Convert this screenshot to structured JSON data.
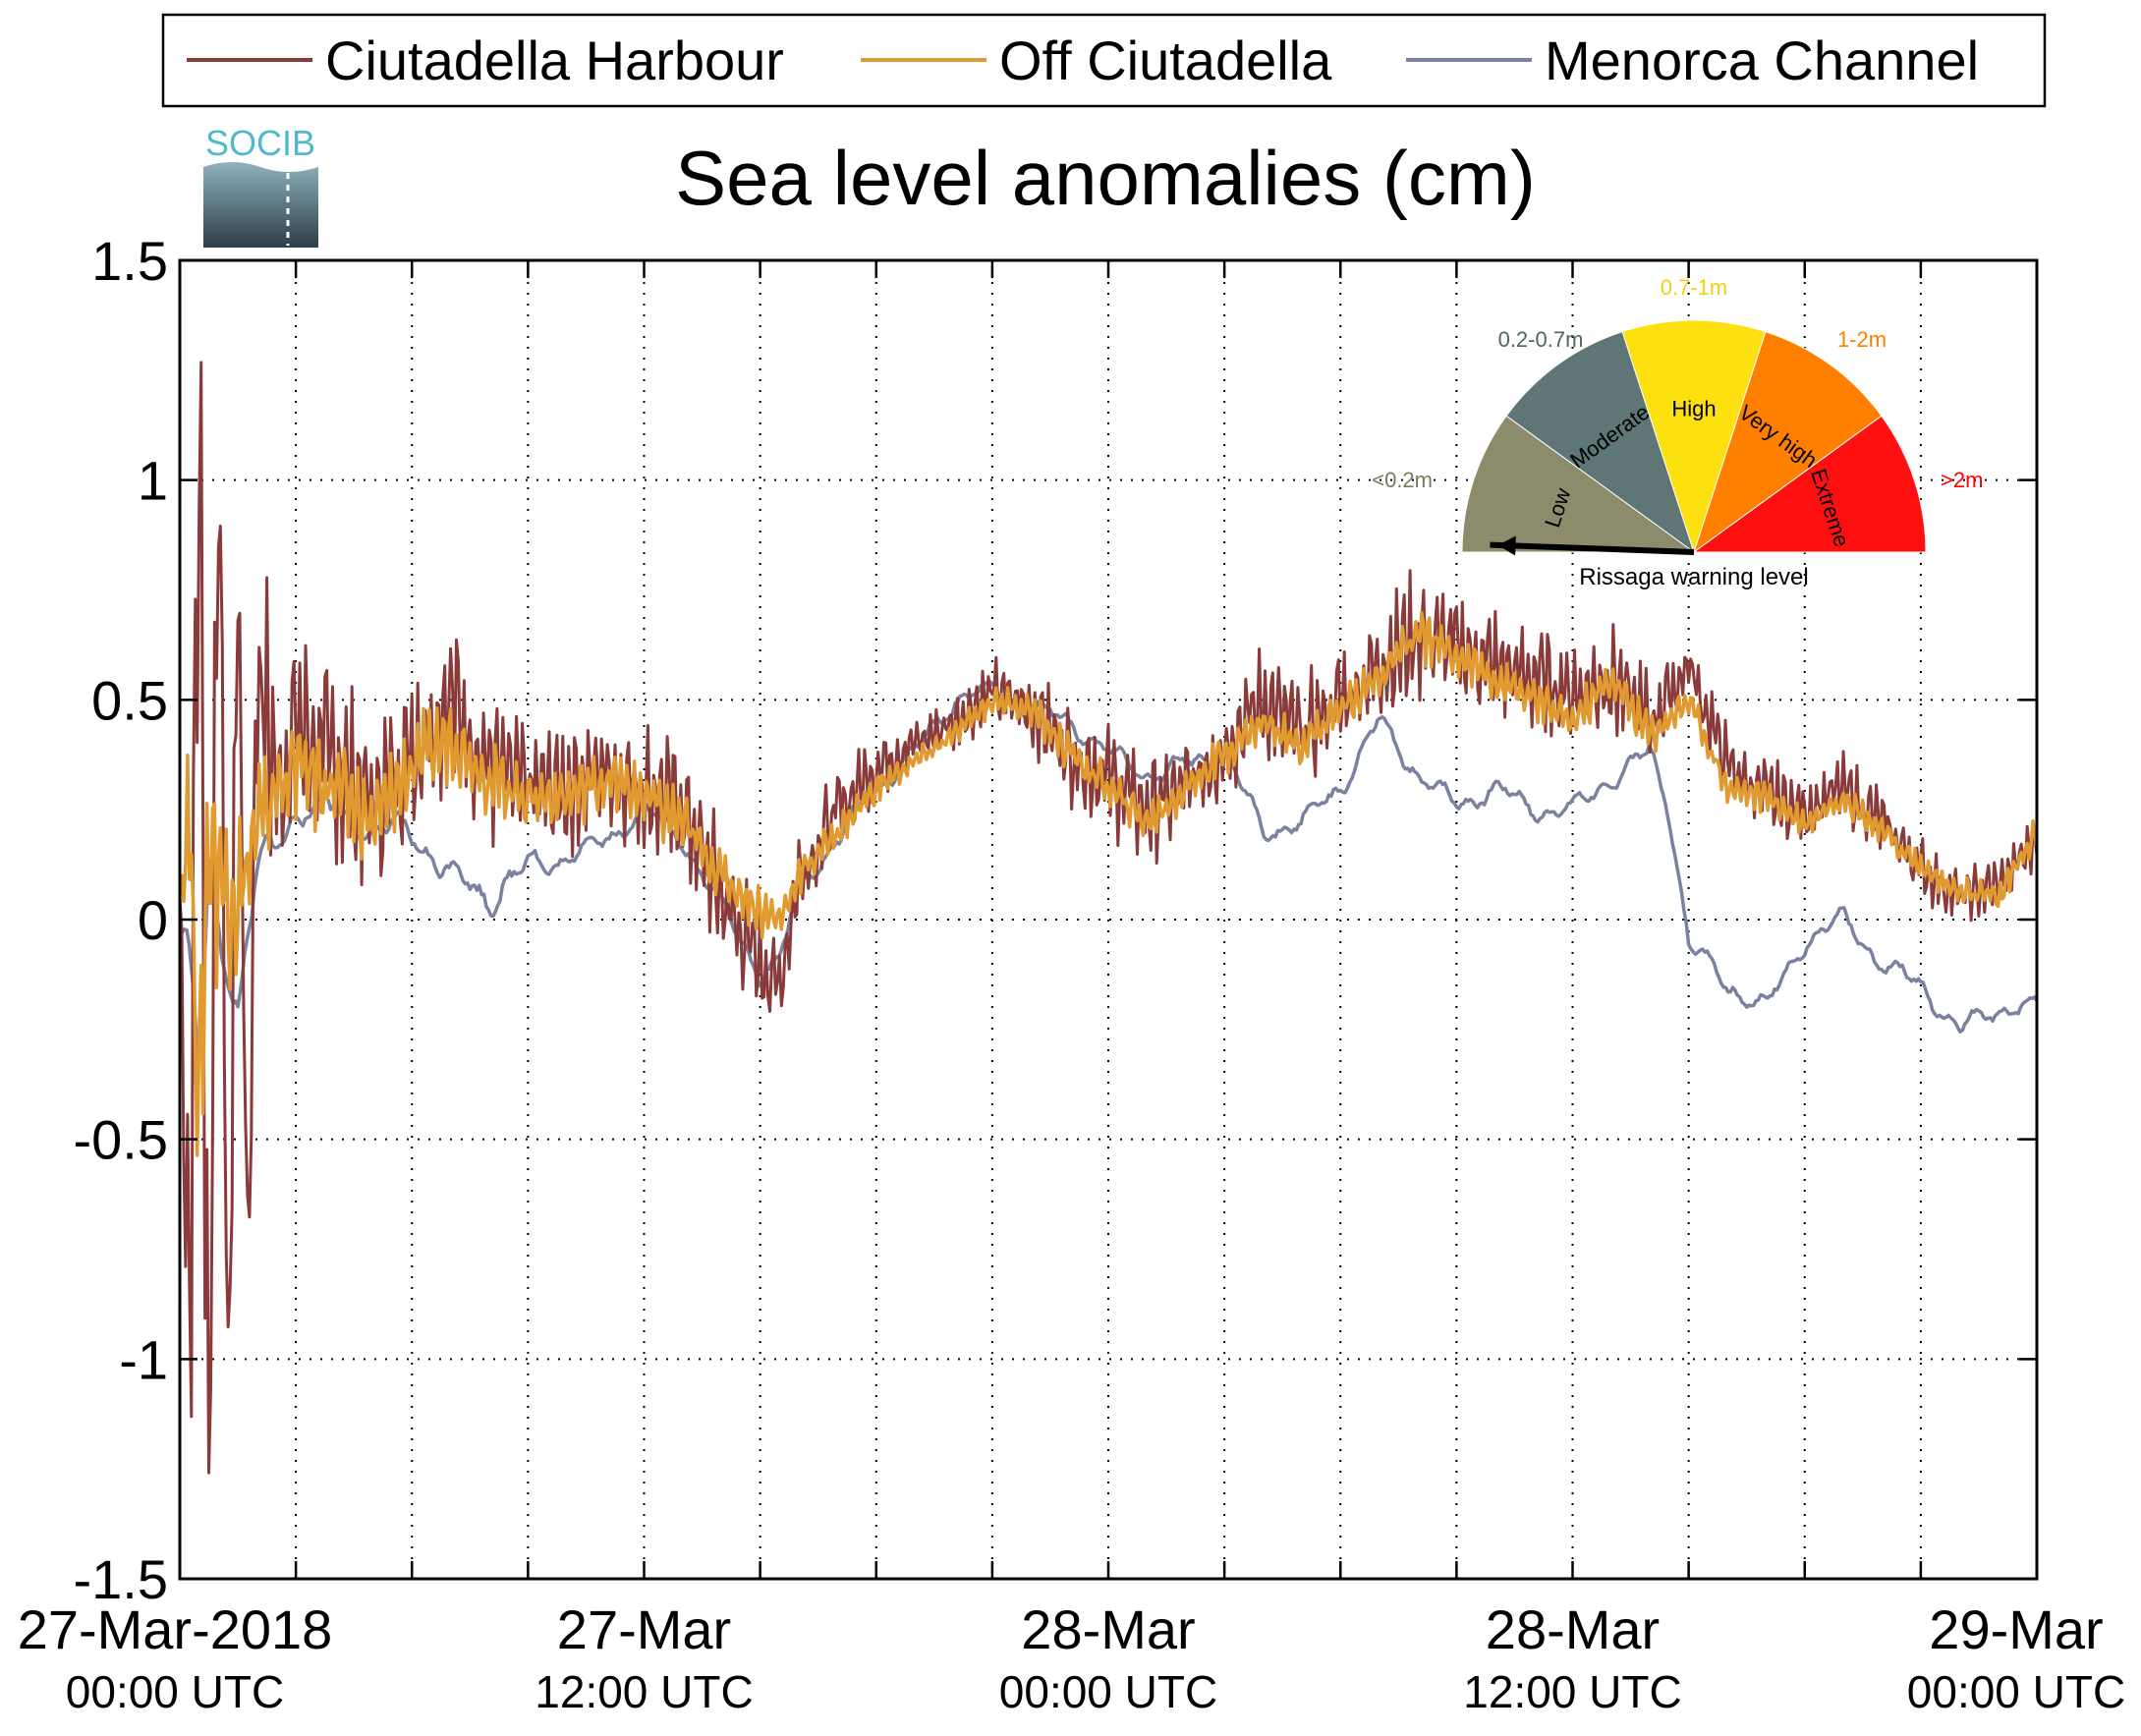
{
  "chart_data": {
    "type": "line",
    "title": "Sea level anomalies (cm)",
    "xlabel": "",
    "ylabel": "",
    "ylim": [
      -1.5,
      1.5
    ],
    "yticks": [
      -1.5,
      -1,
      -0.5,
      0,
      0.5,
      1,
      1.5
    ],
    "ytick_labels": [
      "-1.5",
      "-1",
      "-0.5",
      "0",
      "0.5",
      "1",
      "1.5"
    ],
    "xlim_hours": [
      0,
      48
    ],
    "xticks": [
      {
        "hour": 0,
        "date": "27-Mar-2018",
        "time": "00:00 UTC"
      },
      {
        "hour": 12,
        "date": "27-Mar",
        "time": "12:00 UTC"
      },
      {
        "hour": 24,
        "date": "28-Mar",
        "time": "00:00 UTC"
      },
      {
        "hour": 36,
        "date": "28-Mar",
        "time": "12:00 UTC"
      },
      {
        "hour": 48,
        "date": "29-Mar",
        "time": "00:00 UTC"
      }
    ],
    "grid": true,
    "legend_position": "top",
    "series": [
      {
        "name": "Ciutadella Harbour",
        "color": "#8b3a3a",
        "x_hours": [
          0,
          0.25,
          0.5,
          0.75,
          1,
          1.25,
          1.5,
          1.75,
          2,
          2.5,
          3,
          4,
          5,
          6,
          7,
          8,
          9,
          10,
          11,
          12,
          13,
          14,
          15,
          15.5,
          16,
          17,
          18,
          19,
          20,
          21,
          22,
          23,
          24,
          25,
          26,
          27,
          28,
          29,
          30,
          31,
          32,
          33,
          34,
          35,
          36,
          37,
          38,
          39,
          40,
          41,
          42,
          43,
          44,
          45,
          46,
          47,
          48
        ],
        "values": [
          0.05,
          -0.9,
          1.2,
          -1.3,
          1.3,
          -1.2,
          0.9,
          -0.8,
          0.6,
          0.3,
          0.45,
          0.35,
          0.25,
          0.4,
          0.5,
          0.35,
          0.3,
          0.3,
          0.35,
          0.3,
          0.25,
          0.05,
          -0.1,
          -0.15,
          0.1,
          0.25,
          0.35,
          0.4,
          0.45,
          0.52,
          0.48,
          0.38,
          0.32,
          0.25,
          0.3,
          0.4,
          0.5,
          0.42,
          0.5,
          0.58,
          0.65,
          0.62,
          0.58,
          0.55,
          0.52,
          0.55,
          0.45,
          0.58,
          0.35,
          0.28,
          0.25,
          0.3,
          0.22,
          0.12,
          0.05,
          0.08,
          0.18
        ],
        "noise": [
          0.05,
          0.5,
          0.5,
          0.5,
          0.5,
          0.5,
          0.45,
          0.4,
          0.3,
          0.22,
          0.2,
          0.18,
          0.16,
          0.16,
          0.16,
          0.15,
          0.12,
          0.12,
          0.12,
          0.12,
          0.12,
          0.12,
          0.1,
          0.08,
          0.09,
          0.08,
          0.06,
          0.05,
          0.05,
          0.06,
          0.07,
          0.09,
          0.1,
          0.1,
          0.1,
          0.1,
          0.1,
          0.1,
          0.1,
          0.1,
          0.12,
          0.1,
          0.1,
          0.1,
          0.1,
          0.1,
          0.09,
          0.08,
          0.07,
          0.07,
          0.06,
          0.06,
          0.06,
          0.06,
          0.05,
          0.05,
          0.05
        ]
      },
      {
        "name": "Off Ciutadella",
        "color": "#e09a30",
        "x_hours": [
          0,
          0.25,
          0.5,
          0.75,
          1,
          1.5,
          2,
          2.5,
          3,
          4,
          5,
          6,
          7,
          8,
          9,
          10,
          11,
          12,
          13,
          14,
          15,
          15.5,
          16,
          17,
          18,
          19,
          20,
          21,
          22,
          23,
          24,
          25,
          26,
          27,
          28,
          29,
          30,
          31,
          32,
          33,
          34,
          35,
          36,
          37,
          38,
          39,
          40,
          41,
          42,
          43,
          44,
          45,
          46,
          47,
          48
        ],
        "values": [
          0.05,
          0.25,
          -0.45,
          0.2,
          0.1,
          0.05,
          0.2,
          0.3,
          0.35,
          0.3,
          0.22,
          0.35,
          0.42,
          0.32,
          0.28,
          0.28,
          0.32,
          0.28,
          0.22,
          0.1,
          0.02,
          0.0,
          0.1,
          0.2,
          0.3,
          0.36,
          0.42,
          0.5,
          0.48,
          0.38,
          0.3,
          0.22,
          0.3,
          0.38,
          0.45,
          0.4,
          0.48,
          0.55,
          0.65,
          0.6,
          0.55,
          0.5,
          0.45,
          0.55,
          0.42,
          0.5,
          0.3,
          0.28,
          0.22,
          0.28,
          0.2,
          0.12,
          0.06,
          0.05,
          0.2
        ],
        "noise": [
          0.04,
          0.2,
          0.2,
          0.22,
          0.2,
          0.16,
          0.13,
          0.11,
          0.1,
          0.09,
          0.08,
          0.08,
          0.08,
          0.07,
          0.06,
          0.06,
          0.06,
          0.06,
          0.06,
          0.05,
          0.05,
          0.04,
          0.04,
          0.03,
          0.03,
          0.02,
          0.02,
          0.03,
          0.03,
          0.04,
          0.04,
          0.04,
          0.04,
          0.04,
          0.04,
          0.04,
          0.04,
          0.04,
          0.05,
          0.04,
          0.04,
          0.04,
          0.04,
          0.04,
          0.04,
          0.03,
          0.03,
          0.03,
          0.03,
          0.03,
          0.03,
          0.03,
          0.03,
          0.03,
          0.03
        ]
      },
      {
        "name": "Menorca Channel",
        "color": "#7a82a0",
        "x_hours": [
          0,
          0.25,
          0.5,
          0.75,
          1,
          1.5,
          2,
          3,
          4,
          5,
          6,
          7,
          8,
          9,
          10,
          11,
          12,
          13,
          14,
          15,
          15.5,
          16,
          17,
          18,
          19,
          20,
          21,
          22,
          23,
          24,
          25,
          26,
          27,
          28,
          29,
          30,
          31,
          32,
          33,
          34,
          35,
          36,
          37,
          38,
          38.5,
          39,
          40,
          41,
          42,
          43,
          44,
          45,
          46,
          47,
          48
        ],
        "values": [
          -0.02,
          -0.1,
          -0.35,
          0.1,
          0.0,
          -0.2,
          0.1,
          0.25,
          0.25,
          0.2,
          0.2,
          0.1,
          0.05,
          0.12,
          0.14,
          0.18,
          0.25,
          0.18,
          0.03,
          -0.12,
          -0.1,
          0.08,
          0.18,
          0.3,
          0.38,
          0.5,
          0.52,
          0.48,
          0.45,
          0.38,
          0.33,
          0.35,
          0.38,
          0.2,
          0.22,
          0.3,
          0.45,
          0.33,
          0.26,
          0.3,
          0.25,
          0.25,
          0.32,
          0.38,
          0.25,
          -0.05,
          -0.15,
          -0.2,
          -0.05,
          0.0,
          -0.1,
          -0.15,
          -0.25,
          -0.2,
          -0.2
        ],
        "noise": [
          0.02,
          0.05,
          0.05,
          0.05,
          0.05,
          0.04,
          0.04,
          0.03,
          0.03,
          0.03,
          0.03,
          0.03,
          0.03,
          0.03,
          0.02,
          0.02,
          0.02,
          0.02,
          0.02,
          0.02,
          0.02,
          0.02,
          0.02,
          0.02,
          0.02,
          0.02,
          0.02,
          0.02,
          0.02,
          0.02,
          0.02,
          0.02,
          0.02,
          0.02,
          0.02,
          0.02,
          0.02,
          0.02,
          0.02,
          0.02,
          0.02,
          0.02,
          0.02,
          0.02,
          0.02,
          0.02,
          0.02,
          0.02,
          0.02,
          0.02,
          0.02,
          0.02,
          0.02,
          0.02,
          0.02
        ]
      }
    ]
  },
  "logo": {
    "text": "SOCIB"
  },
  "gauge": {
    "caption": "Rissaga warning level",
    "pointer_value": 0.1,
    "segments": [
      {
        "label": "Low",
        "range": "<0.2m",
        "color": "#8c8c6c",
        "range_color": "#7c7c5c"
      },
      {
        "label": "Moderate",
        "range": "0.2-0.7m",
        "color": "#5e7676",
        "range_color": "#4e6666"
      },
      {
        "label": "High",
        "range": "0.7-1m",
        "color": "#fde010",
        "range_color": "#f0d010"
      },
      {
        "label": "Very high",
        "range": "1-2m",
        "color": "#ff8000",
        "range_color": "#ff8000"
      },
      {
        "label": "Extreme",
        "range": ">2m",
        "color": "#ff1010",
        "range_color": "#ff0000"
      }
    ]
  }
}
